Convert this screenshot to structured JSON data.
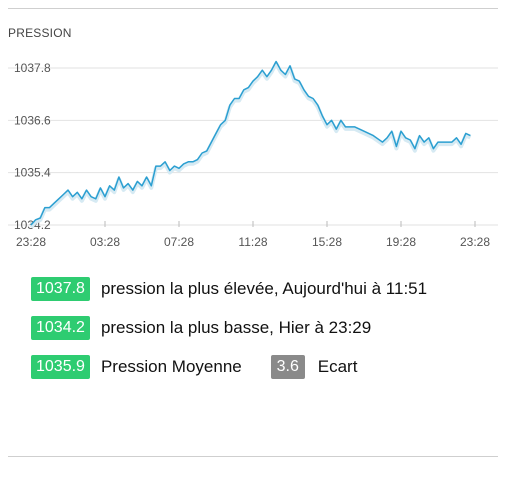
{
  "section_title": "PRESSION",
  "colors": {
    "line": "#2b9fd1",
    "badge_green": "#2ecc71",
    "badge_grey": "#8a8a8a",
    "grid": "#e2e2e2"
  },
  "chart_data": {
    "type": "line",
    "title": "PRESSION",
    "xlabel": "",
    "ylabel": "",
    "x_ticks": [
      "23:28",
      "03:28",
      "07:28",
      "11:28",
      "15:28",
      "19:28",
      "23:28"
    ],
    "y_ticks": [
      "1034.2",
      "1035.4",
      "1036.6",
      "1037.8"
    ],
    "y_tick_values": [
      1034.2,
      1035.4,
      1036.6,
      1037.8
    ],
    "ylim": [
      1034.2,
      1037.8
    ],
    "x_range_hours": [
      0,
      24
    ],
    "grid": true,
    "series": [
      {
        "x_hours": [
          0,
          0.25,
          0.5,
          0.75,
          1,
          1.25,
          1.5,
          1.75,
          2,
          2.25,
          2.5,
          2.75,
          3,
          3.25,
          3.5,
          3.75,
          4,
          4.25,
          4.5,
          4.75,
          5,
          5.25,
          5.5,
          5.75,
          6,
          6.25,
          6.5,
          6.75,
          7,
          7.25,
          7.5,
          7.75,
          8,
          8.25,
          8.5,
          8.75,
          9,
          9.25,
          9.5,
          9.75,
          10,
          10.25,
          10.5,
          10.75,
          11,
          11.25,
          11.5,
          11.75,
          12,
          12.25,
          12.5,
          12.75,
          13,
          13.25,
          13.5,
          13.75,
          14,
          14.25,
          14.5,
          14.75,
          15,
          15.25,
          15.5,
          15.75,
          16,
          16.25,
          16.5,
          16.75,
          17,
          17.5,
          18,
          18.5,
          19,
          19.25,
          19.5,
          19.75,
          20,
          20.25,
          20.5,
          20.75,
          21,
          21.25,
          21.5,
          21.75,
          22,
          22.25,
          22.5,
          22.75,
          23,
          23.25,
          23.5,
          23.75
        ],
        "values": [
          1034.2,
          1034.32,
          1034.36,
          1034.6,
          1034.6,
          1034.7,
          1034.8,
          1034.9,
          1035.0,
          1034.85,
          1034.95,
          1034.8,
          1035.0,
          1034.85,
          1034.8,
          1035.05,
          1034.85,
          1035.1,
          1035.0,
          1035.3,
          1035.05,
          1035.15,
          1035.0,
          1035.2,
          1035.1,
          1035.3,
          1035.1,
          1035.55,
          1035.55,
          1035.65,
          1035.45,
          1035.55,
          1035.5,
          1035.6,
          1035.65,
          1035.65,
          1035.7,
          1035.85,
          1035.9,
          1036.1,
          1036.3,
          1036.5,
          1036.6,
          1036.95,
          1037.1,
          1037.1,
          1037.3,
          1037.35,
          1037.5,
          1037.6,
          1037.75,
          1037.6,
          1037.75,
          1037.95,
          1037.75,
          1037.65,
          1037.85,
          1037.55,
          1037.5,
          1037.3,
          1037.15,
          1037.1,
          1036.95,
          1036.7,
          1036.5,
          1036.6,
          1036.4,
          1036.6,
          1036.45,
          1036.45,
          1036.35,
          1036.25,
          1036.1,
          1036.2,
          1036.35,
          1036.0,
          1036.35,
          1036.2,
          1036.15,
          1035.95,
          1036.25,
          1036.1,
          1036.2,
          1035.95,
          1036.1,
          1036.1,
          1036.1,
          1036.1,
          1036.2,
          1036.05,
          1036.3,
          1036.25
        ]
      }
    ]
  },
  "stats": {
    "max_value": "1037.8",
    "max_label": "pression la plus élevée, Aujourd'hui à 11:51",
    "min_value": "1034.2",
    "min_label": "pression la plus basse, Hier à 23:29",
    "avg_value": "1035.9",
    "avg_label": "Pression Moyenne",
    "range_value": "3.6",
    "range_label": "Ecart"
  }
}
